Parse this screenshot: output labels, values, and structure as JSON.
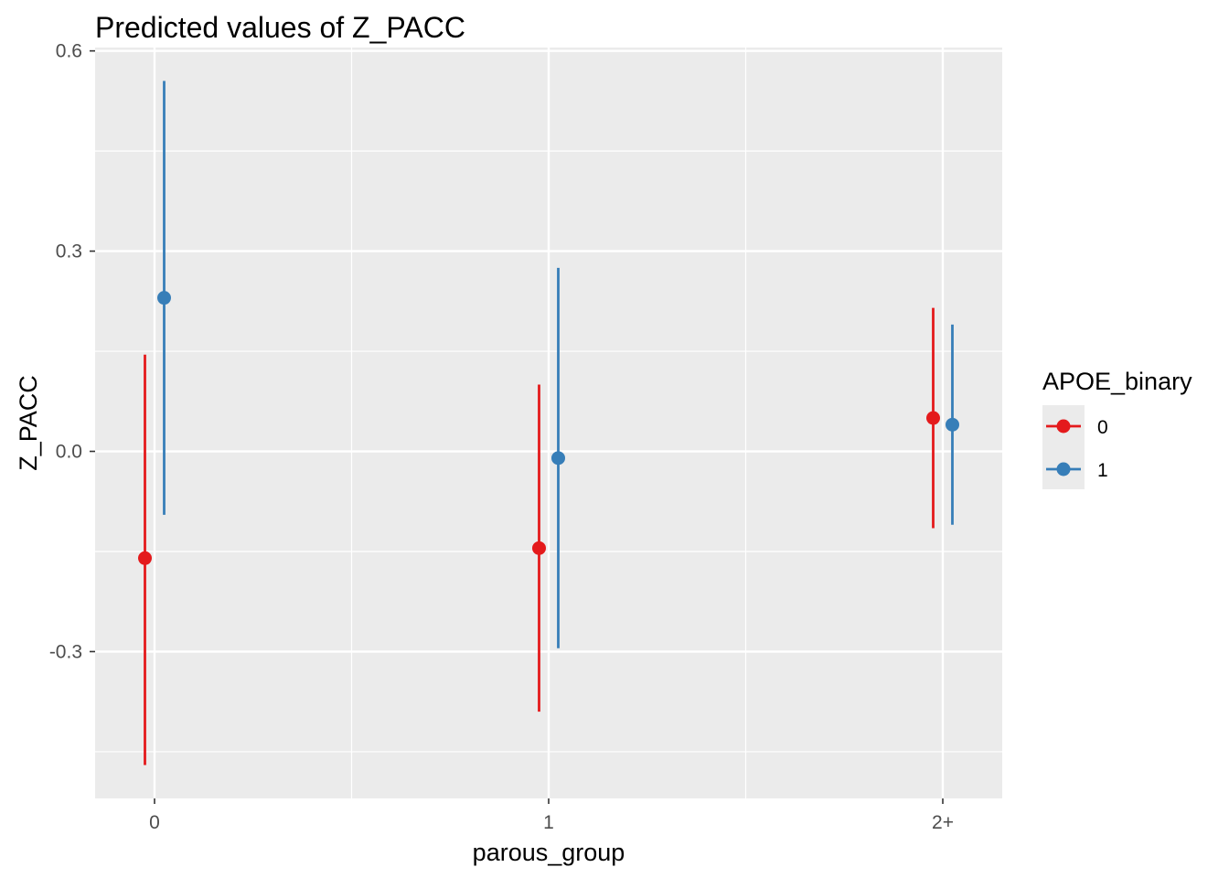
{
  "chart_data": {
    "type": "scatter",
    "title": "Predicted values of Z_PACC",
    "xlabel": "parous_group",
    "ylabel": "Z_PACC",
    "categories": [
      "0",
      "1",
      "2+"
    ],
    "ylim": [
      -0.52,
      0.605
    ],
    "yticks": [
      -0.3,
      0.0,
      0.3,
      0.6
    ],
    "ytick_labels": [
      "-0.3",
      "0.0",
      "0.3",
      "0.6"
    ],
    "grid": true,
    "legend": {
      "title": "APOE_binary",
      "position": "right"
    },
    "series": [
      {
        "name": "0",
        "color": "#E41A1C",
        "values": [
          -0.16,
          -0.145,
          0.05
        ],
        "lower": [
          -0.47,
          -0.39,
          -0.115
        ],
        "upper": [
          0.145,
          0.1,
          0.215
        ]
      },
      {
        "name": "1",
        "color": "#377EB8",
        "values": [
          0.23,
          -0.01,
          0.04
        ],
        "lower": [
          -0.095,
          -0.295,
          -0.11
        ],
        "upper": [
          0.555,
          0.275,
          0.19
        ]
      }
    ]
  }
}
